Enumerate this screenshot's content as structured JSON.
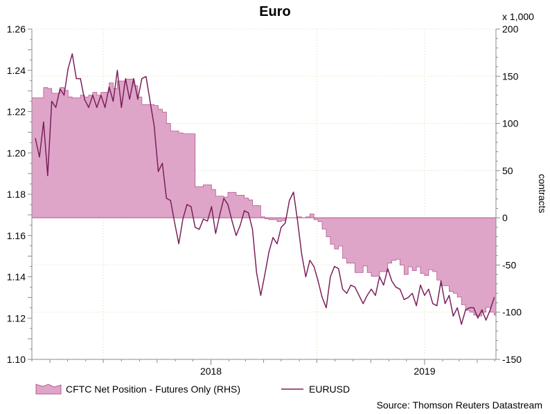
{
  "chart_data": {
    "type": "area",
    "title": "Euro",
    "source": "Source: Thomson Reuters Datastream",
    "x_tick_labels": [
      "2018",
      "2019"
    ],
    "x_ticks": [
      "2018-01-01",
      "2019-01-01"
    ],
    "y_left": {
      "ylim": [
        1.1,
        1.26
      ],
      "ticks": [
        "1.10",
        "1.12",
        "1.14",
        "1.16",
        "1.18",
        "1.20",
        "1.22",
        "1.24",
        "1.26"
      ]
    },
    "y_right": {
      "label": "contracts",
      "multiplier": "x 1,000",
      "ylim": [
        -150,
        200
      ],
      "ticks": [
        "-150",
        "-100",
        "-50",
        "0",
        "50",
        "100",
        "150",
        "200"
      ]
    },
    "grid": true,
    "legend_position": "bottom-left",
    "colors": {
      "area_fill": "#dea5c8",
      "area_edge": "#b65a90",
      "line": "#7a1f5a",
      "grid": "#d8d8a8"
    },
    "series": [
      {
        "name": "CFTC Net Position - Futures Only (RHS)",
        "type": "area",
        "axis": "right",
        "x": [
          "2017-03-07",
          "2017-03-14",
          "2017-03-21",
          "2017-03-28",
          "2017-04-04",
          "2017-04-11",
          "2017-04-18",
          "2017-04-25",
          "2017-05-02",
          "2017-05-09",
          "2017-05-16",
          "2017-05-23",
          "2017-05-30",
          "2017-06-06",
          "2017-06-13",
          "2017-06-20",
          "2017-06-27",
          "2017-07-04",
          "2017-07-11",
          "2017-07-18",
          "2017-07-25",
          "2017-08-01",
          "2017-08-08",
          "2017-08-15",
          "2017-08-22",
          "2017-08-29",
          "2017-09-05",
          "2017-09-12",
          "2017-09-19",
          "2017-09-26",
          "2017-10-03",
          "2017-10-10",
          "2017-10-17",
          "2017-10-24",
          "2017-10-31",
          "2017-11-07",
          "2017-11-14",
          "2017-11-21",
          "2017-11-28",
          "2017-12-05",
          "2017-12-12",
          "2017-12-19",
          "2017-12-26",
          "2018-01-02",
          "2018-01-09",
          "2018-01-16",
          "2018-01-23",
          "2018-01-30",
          "2018-02-06",
          "2018-02-13",
          "2018-02-20",
          "2018-02-27",
          "2018-03-06",
          "2018-03-13",
          "2018-03-20",
          "2018-03-27",
          "2018-04-03",
          "2018-04-10",
          "2018-04-17",
          "2018-04-24",
          "2018-05-01",
          "2018-05-08",
          "2018-05-15",
          "2018-05-22",
          "2018-05-29",
          "2018-06-05",
          "2018-06-12",
          "2018-06-19",
          "2018-06-26",
          "2018-07-03",
          "2018-07-10",
          "2018-07-17",
          "2018-07-24",
          "2018-07-31",
          "2018-08-07",
          "2018-08-14",
          "2018-08-21",
          "2018-08-28",
          "2018-09-04",
          "2018-09-11",
          "2018-09-18",
          "2018-09-25",
          "2018-10-02",
          "2018-10-09",
          "2018-10-16",
          "2018-10-23",
          "2018-10-30",
          "2018-11-06",
          "2018-11-13",
          "2018-11-20",
          "2018-11-27",
          "2018-12-04",
          "2018-12-11",
          "2018-12-18",
          "2018-12-25",
          "2019-01-01",
          "2019-01-08",
          "2019-01-15",
          "2019-01-22",
          "2019-01-29",
          "2019-02-05",
          "2019-02-12",
          "2019-02-19",
          "2019-02-26",
          "2019-03-05",
          "2019-03-12",
          "2019-03-19",
          "2019-03-26",
          "2019-04-02",
          "2019-04-09",
          "2019-04-16",
          "2019-04-23",
          "2019-04-30"
        ],
        "values": [
          127,
          127,
          138,
          137,
          132,
          132,
          138,
          135,
          128,
          127,
          127,
          130,
          128,
          130,
          133,
          130,
          133,
          133,
          143,
          137,
          145,
          145,
          147,
          147,
          140,
          128,
          120,
          120,
          120,
          119,
          115,
          112,
          100,
          92,
          92,
          90,
          89,
          89,
          89,
          33,
          33,
          35,
          35,
          30,
          23,
          23,
          22,
          27,
          27,
          24,
          24,
          21,
          19,
          13,
          13,
          1,
          -1,
          -2,
          -2,
          -4,
          -3,
          0,
          0,
          0,
          1,
          0,
          1,
          4,
          -2,
          -4,
          -12,
          -20,
          -28,
          -33,
          -30,
          -43,
          -48,
          -48,
          -58,
          -58,
          -51,
          -58,
          -62,
          -62,
          -57,
          -57,
          -48,
          -45,
          -44,
          -50,
          -60,
          -52,
          -56,
          -52,
          -59,
          -61,
          -55,
          -57,
          -66,
          -72,
          -72,
          -78,
          -80,
          -84,
          -92,
          -98,
          -100,
          -103,
          -104,
          -100,
          -95,
          -100,
          -103
        ]
      },
      {
        "name": "EURUSD",
        "type": "line",
        "axis": "left",
        "x": [
          "2017-03-07",
          "2017-03-14",
          "2017-03-21",
          "2017-03-28",
          "2017-04-04",
          "2017-04-11",
          "2017-04-18",
          "2017-04-25",
          "2017-05-02",
          "2017-05-09",
          "2017-05-16",
          "2017-05-23",
          "2017-05-30",
          "2017-06-06",
          "2017-06-13",
          "2017-06-20",
          "2017-06-27",
          "2017-07-04",
          "2017-07-11",
          "2017-07-18",
          "2017-07-25",
          "2017-08-01",
          "2017-08-08",
          "2017-08-15",
          "2017-08-22",
          "2017-08-29",
          "2017-09-05",
          "2017-09-12",
          "2017-09-19",
          "2017-09-26",
          "2017-10-03",
          "2017-10-10",
          "2017-10-17",
          "2017-10-24",
          "2017-10-31",
          "2017-11-07",
          "2017-11-14",
          "2017-11-21",
          "2017-11-28",
          "2017-12-05",
          "2017-12-12",
          "2017-12-19",
          "2017-12-26",
          "2018-01-02",
          "2018-01-09",
          "2018-01-16",
          "2018-01-23",
          "2018-01-30",
          "2018-02-06",
          "2018-02-13",
          "2018-02-20",
          "2018-02-27",
          "2018-03-06",
          "2018-03-13",
          "2018-03-20",
          "2018-03-27",
          "2018-04-03",
          "2018-04-10",
          "2018-04-17",
          "2018-04-24",
          "2018-05-01",
          "2018-05-08",
          "2018-05-15",
          "2018-05-22",
          "2018-05-29",
          "2018-06-05",
          "2018-06-12",
          "2018-06-19",
          "2018-06-26",
          "2018-07-03",
          "2018-07-10",
          "2018-07-17",
          "2018-07-24",
          "2018-07-31",
          "2018-08-07",
          "2018-08-14",
          "2018-08-21",
          "2018-08-28",
          "2018-09-04",
          "2018-09-11",
          "2018-09-18",
          "2018-09-25",
          "2018-10-02",
          "2018-10-09",
          "2018-10-16",
          "2018-10-23",
          "2018-10-30",
          "2018-11-06",
          "2018-11-13",
          "2018-11-20",
          "2018-11-27",
          "2018-12-04",
          "2018-12-11",
          "2018-12-18",
          "2018-12-25",
          "2019-01-01",
          "2019-01-08",
          "2019-01-15",
          "2019-01-22",
          "2019-01-29",
          "2019-02-05",
          "2019-02-12",
          "2019-02-19",
          "2019-02-26",
          "2019-03-05",
          "2019-03-12",
          "2019-03-19",
          "2019-03-26",
          "2019-04-02",
          "2019-04-09",
          "2019-04-16",
          "2019-04-23",
          "2019-04-30"
        ],
        "values": [
          1.207,
          1.198,
          1.215,
          1.189,
          1.225,
          1.222,
          1.231,
          1.228,
          1.241,
          1.248,
          1.236,
          1.236,
          1.226,
          1.222,
          1.228,
          1.222,
          1.228,
          1.222,
          1.232,
          1.225,
          1.24,
          1.222,
          1.236,
          1.226,
          1.236,
          1.226,
          1.236,
          1.237,
          1.225,
          1.213,
          1.191,
          1.195,
          1.178,
          1.177,
          1.166,
          1.156,
          1.168,
          1.175,
          1.174,
          1.164,
          1.163,
          1.168,
          1.167,
          1.174,
          1.161,
          1.17,
          1.178,
          1.175,
          1.167,
          1.16,
          1.165,
          1.172,
          1.171,
          1.163,
          1.142,
          1.131,
          1.141,
          1.152,
          1.159,
          1.156,
          1.164,
          1.166,
          1.177,
          1.181,
          1.167,
          1.151,
          1.14,
          1.148,
          1.145,
          1.138,
          1.13,
          1.125,
          1.14,
          1.145,
          1.144,
          1.134,
          1.132,
          1.136,
          1.135,
          1.131,
          1.127,
          1.131,
          1.134,
          1.131,
          1.14,
          1.136,
          1.144,
          1.138,
          1.135,
          1.134,
          1.129,
          1.13,
          1.132,
          1.126,
          1.136,
          1.131,
          1.134,
          1.127,
          1.126,
          1.138,
          1.127,
          1.131,
          1.121,
          1.125,
          1.117,
          1.124,
          1.125,
          1.125,
          1.12,
          1.124,
          1.119,
          1.124,
          1.13
        ]
      }
    ]
  }
}
